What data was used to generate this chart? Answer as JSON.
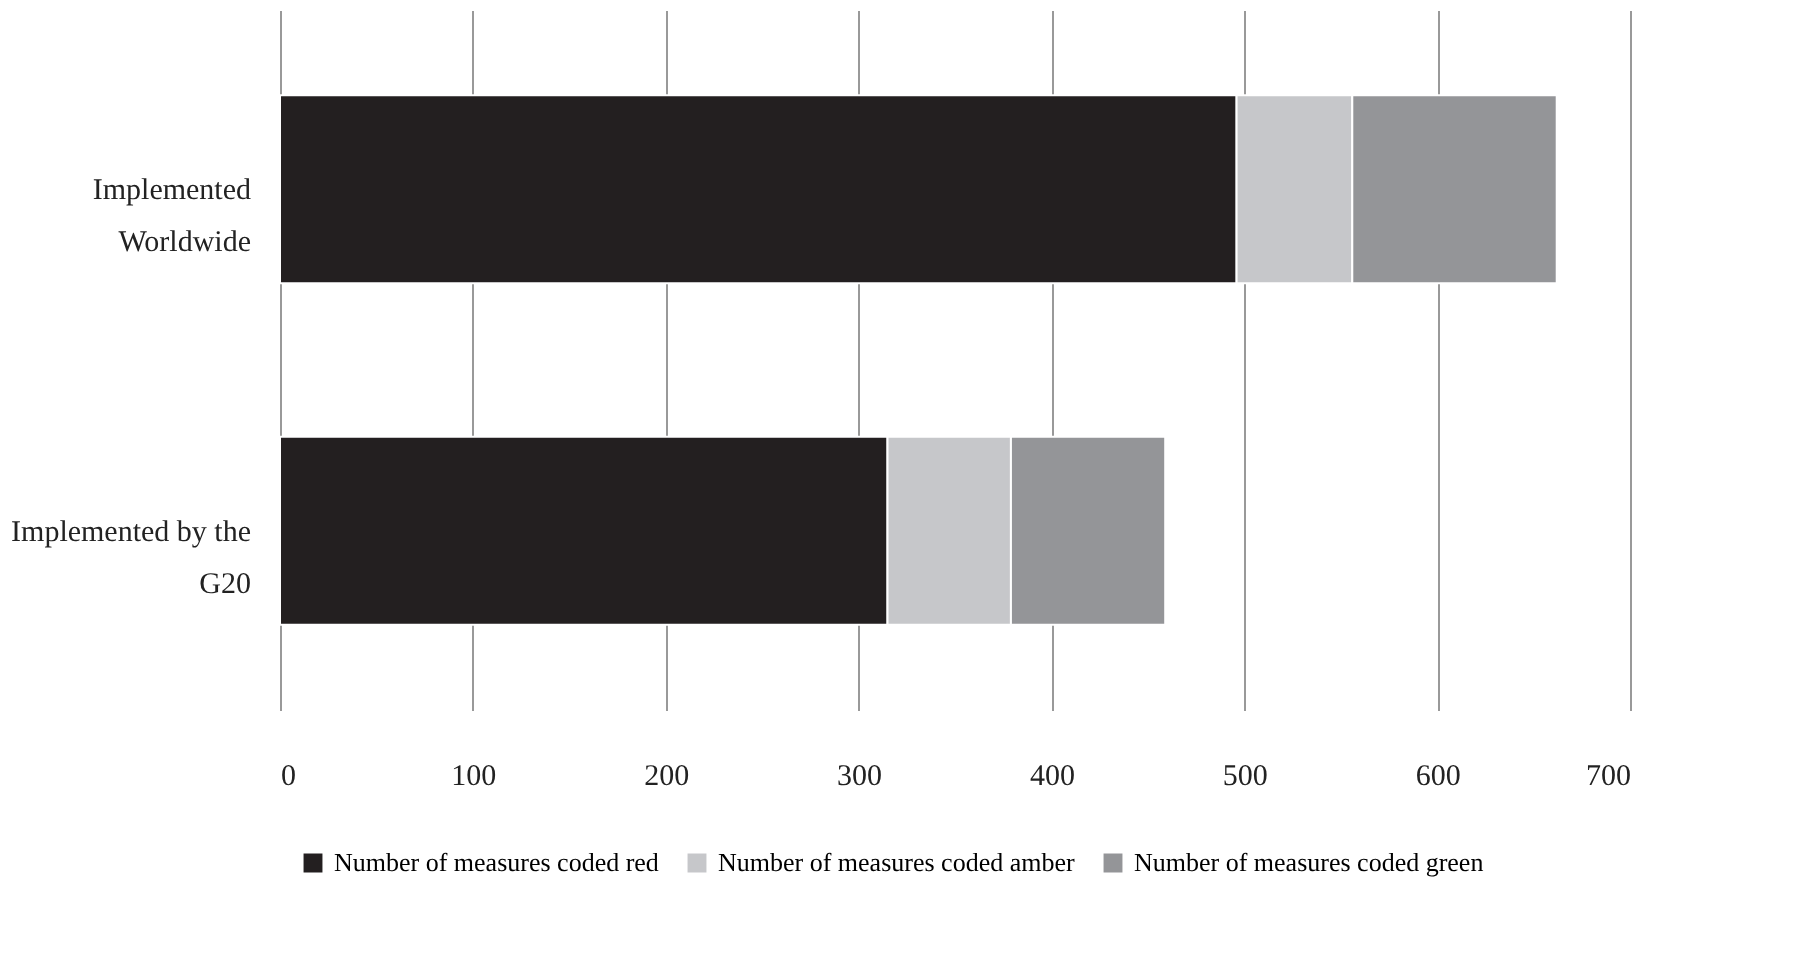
{
  "chart_data": {
    "type": "bar",
    "orientation": "horizontal",
    "stacked": true,
    "categories": [
      "Implemented Worldwide",
      "Implemented by the G20"
    ],
    "series": [
      {
        "name": "Number of measures coded red",
        "color": "#231f20",
        "values": [
          496,
          315
        ]
      },
      {
        "name": "Number of measures coded amber",
        "color": "#c6c7ca",
        "values": [
          60,
          64
        ]
      },
      {
        "name": "Number of measures coded green",
        "color": "#949598",
        "values": [
          106,
          80
        ]
      }
    ],
    "xlim": [
      0,
      700
    ],
    "xticks": [
      0,
      100,
      200,
      300,
      400,
      500,
      600,
      700
    ],
    "grid": "x",
    "legend": "bottom"
  }
}
